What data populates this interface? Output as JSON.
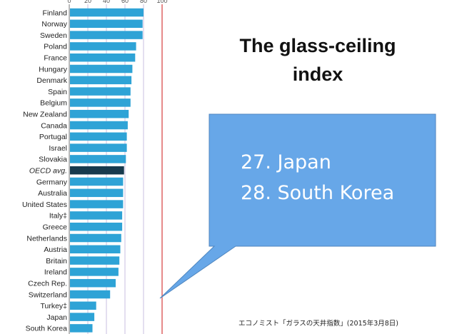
{
  "headline": {
    "line1": "The glass-ceiling",
    "line2": "index"
  },
  "callout": {
    "line1": "27. Japan",
    "line2": "28. South Korea"
  },
  "source_note": "エコノミスト「ガラスの天井指数」(2015年3月8日)",
  "chart_data": {
    "type": "bar",
    "orientation": "horizontal",
    "categories": [
      "Finland",
      "Norway",
      "Sweden",
      "Poland",
      "France",
      "Hungary",
      "Denmark",
      "Spain",
      "Belgium",
      "New Zealand",
      "Canada",
      "Portugal",
      "Israel",
      "Slovakia",
      "OECD avg.",
      "Germany",
      "Australia",
      "United States",
      "Italy‡",
      "Greece",
      "Netherlands",
      "Austria",
      "Britain",
      "Ireland",
      "Czech Rep.",
      "Switzerland",
      "Turkey‡",
      "Japan",
      "South Korea"
    ],
    "values": [
      80,
      79,
      79,
      72,
      71,
      68,
      67,
      66,
      66,
      64,
      63,
      62,
      62,
      61,
      59,
      58,
      58,
      58,
      57,
      57,
      56,
      55,
      54,
      53,
      50,
      44,
      29,
      27,
      25
    ],
    "highlight_category": "OECD avg.",
    "xticks": [
      "0",
      "20",
      "40",
      "60",
      "80",
      "100"
    ],
    "xlim": [
      0,
      100
    ],
    "colors": {
      "bar": "#2ea3d6",
      "highlight_bar": "#173a4d",
      "reference_line": "#d94b4b",
      "gridline": "#c9bfe0",
      "callout_fill": "#67a7e8"
    }
  }
}
